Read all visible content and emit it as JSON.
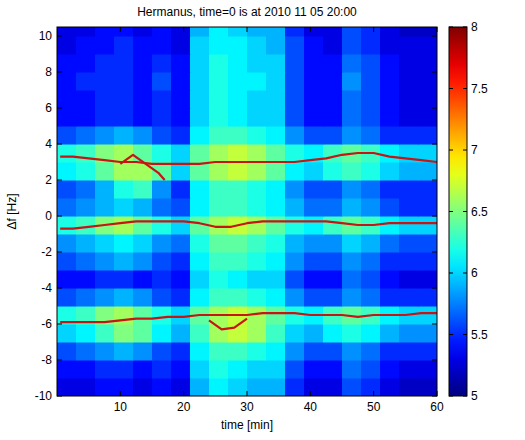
{
  "chart_data": {
    "type": "heatmap",
    "title": "Hermanus, time=0 is at 2010 11 05 20:00",
    "x_label": "time [min]",
    "y_label": "Δf [Hz]",
    "xlim": [
      0,
      60
    ],
    "ylim": [
      -10,
      10.5
    ],
    "xticks": [
      10,
      20,
      30,
      40,
      50,
      60
    ],
    "yticks": [
      -10,
      -8,
      -6,
      -4,
      -2,
      0,
      2,
      4,
      6,
      8,
      10
    ],
    "x_edges": [
      0,
      3,
      6,
      9,
      12,
      15,
      18,
      21,
      24,
      27,
      30,
      33,
      36,
      39,
      42,
      45,
      48,
      51,
      54,
      57,
      60
    ],
    "y_edges": [
      -10,
      -9,
      -8,
      -7,
      -6,
      -5,
      -4,
      -3,
      -2,
      -1,
      0,
      1,
      2,
      3,
      4,
      5,
      6,
      7,
      8,
      9,
      10,
      10.5
    ],
    "cells": [
      [
        5.3,
        5.3,
        5.4,
        5.4,
        5.3,
        5.4,
        5.3,
        5.9,
        6.1,
        6.0,
        5.9,
        5.9,
        5.5,
        5.3,
        5.3,
        5.6,
        5.5,
        5.3,
        5.2,
        5.2
      ],
      [
        5.4,
        5.4,
        5.5,
        5.5,
        5.4,
        5.5,
        5.4,
        6.0,
        6.2,
        6.1,
        6.0,
        6.0,
        5.6,
        5.4,
        5.4,
        5.7,
        5.6,
        5.4,
        5.3,
        5.3
      ],
      [
        5.6,
        5.7,
        5.8,
        5.9,
        5.8,
        5.6,
        5.5,
        6.1,
        6.3,
        6.3,
        6.2,
        6.1,
        5.8,
        5.6,
        5.6,
        5.8,
        5.7,
        5.5,
        5.5,
        5.5
      ],
      [
        6.0,
        6.1,
        6.3,
        6.5,
        6.4,
        6.1,
        5.9,
        6.3,
        6.6,
        6.7,
        6.6,
        6.3,
        6.0,
        5.9,
        6.1,
        6.2,
        6.1,
        5.9,
        5.8,
        5.8
      ],
      [
        6.2,
        6.3,
        6.5,
        6.6,
        6.4,
        6.2,
        6.0,
        6.4,
        6.6,
        6.7,
        6.6,
        6.4,
        6.2,
        6.1,
        6.3,
        6.4,
        6.3,
        6.1,
        6.0,
        6.0
      ],
      [
        5.6,
        5.7,
        5.8,
        5.9,
        5.8,
        5.6,
        5.5,
        6.1,
        6.3,
        6.3,
        6.2,
        6.1,
        5.8,
        5.6,
        5.6,
        5.8,
        5.7,
        5.5,
        5.5,
        5.5
      ],
      [
        5.4,
        5.4,
        5.5,
        5.5,
        5.4,
        5.5,
        5.4,
        6.0,
        6.2,
        6.1,
        6.0,
        6.0,
        5.6,
        5.4,
        5.4,
        5.7,
        5.6,
        5.4,
        5.3,
        5.3
      ],
      [
        5.6,
        5.7,
        5.8,
        5.9,
        5.8,
        5.6,
        5.5,
        6.1,
        6.3,
        6.3,
        6.2,
        6.1,
        5.8,
        5.6,
        5.6,
        5.8,
        5.7,
        5.5,
        5.5,
        5.5
      ],
      [
        5.8,
        5.9,
        6.0,
        6.1,
        6.0,
        5.8,
        5.7,
        6.2,
        6.4,
        6.4,
        6.3,
        6.2,
        5.9,
        5.8,
        5.8,
        6.0,
        5.9,
        5.7,
        5.6,
        5.6
      ],
      [
        6.2,
        6.3,
        6.5,
        6.6,
        6.4,
        6.2,
        6.0,
        6.4,
        6.6,
        6.7,
        6.6,
        6.4,
        6.2,
        6.1,
        6.3,
        6.4,
        6.3,
        6.1,
        6.0,
        6.0
      ],
      [
        5.7,
        5.8,
        5.9,
        6.0,
        5.9,
        5.7,
        5.6,
        6.1,
        6.3,
        6.3,
        6.2,
        6.1,
        5.9,
        5.7,
        5.7,
        5.9,
        5.8,
        5.6,
        5.5,
        5.5
      ],
      [
        5.6,
        5.7,
        5.9,
        6.2,
        6.3,
        5.8,
        5.5,
        6.1,
        6.3,
        6.3,
        6.2,
        6.1,
        5.8,
        5.6,
        5.6,
        5.8,
        5.7,
        5.5,
        5.5,
        5.5
      ],
      [
        6.1,
        6.2,
        6.4,
        6.6,
        6.6,
        6.4,
        6.0,
        6.4,
        6.6,
        6.7,
        6.6,
        6.4,
        6.1,
        6.0,
        6.2,
        6.3,
        6.2,
        6.0,
        5.9,
        5.9
      ],
      [
        6.2,
        6.3,
        6.5,
        6.6,
        6.4,
        6.2,
        6.0,
        6.4,
        6.6,
        6.7,
        6.6,
        6.4,
        6.2,
        6.1,
        6.3,
        6.4,
        6.3,
        6.1,
        6.0,
        6.0
      ],
      [
        5.6,
        5.7,
        5.8,
        5.9,
        5.8,
        5.6,
        5.5,
        6.1,
        6.3,
        6.3,
        6.2,
        6.1,
        5.8,
        5.6,
        5.6,
        5.8,
        5.7,
        5.5,
        5.5,
        5.5
      ],
      [
        5.4,
        5.4,
        5.5,
        5.5,
        5.4,
        5.5,
        5.4,
        6.0,
        6.2,
        6.1,
        6.0,
        6.0,
        5.6,
        5.4,
        5.4,
        5.7,
        5.6,
        5.4,
        5.3,
        5.3
      ],
      [
        5.4,
        5.4,
        5.5,
        5.5,
        5.4,
        5.5,
        5.4,
        6.0,
        6.2,
        6.1,
        6.0,
        6.0,
        5.6,
        5.4,
        5.4,
        5.7,
        5.6,
        5.4,
        5.3,
        5.3
      ],
      [
        5.4,
        5.5,
        5.5,
        5.5,
        5.4,
        5.6,
        5.4,
        6.0,
        6.2,
        6.1,
        6.1,
        6.0,
        5.6,
        5.4,
        5.4,
        5.8,
        5.6,
        5.4,
        5.3,
        5.3
      ],
      [
        5.4,
        5.4,
        5.5,
        5.5,
        5.4,
        5.5,
        5.4,
        6.0,
        6.2,
        6.1,
        6.0,
        6.0,
        5.6,
        5.4,
        5.4,
        5.7,
        5.6,
        5.4,
        5.3,
        5.3
      ],
      [
        5.3,
        5.4,
        5.4,
        5.5,
        5.4,
        5.4,
        5.3,
        6.0,
        6.1,
        6.1,
        6.0,
        5.9,
        5.6,
        5.4,
        5.3,
        5.6,
        5.5,
        5.3,
        5.3,
        5.3
      ],
      [
        5.3,
        5.3,
        5.4,
        5.4,
        5.3,
        5.4,
        5.3,
        5.9,
        6.1,
        6.0,
        5.9,
        5.9,
        5.5,
        5.3,
        5.3,
        5.6,
        5.5,
        5.3,
        5.2,
        5.2
      ]
    ],
    "color_range": [
      5,
      8
    ],
    "color_ticks": [
      5,
      5.5,
      6,
      6.5,
      7,
      7.5,
      8
    ],
    "series": [
      {
        "color": "#c81414",
        "x": [
          0.5,
          2.5,
          5,
          7.5,
          10,
          12.5,
          15,
          17.5,
          20,
          22.5,
          25,
          27.5,
          30,
          32.5,
          35,
          37.5,
          40,
          42.5,
          45,
          47.5,
          50,
          52.5,
          55,
          57.5,
          60
        ],
        "values": [
          3.3,
          3.3,
          3.2,
          3.1,
          3.0,
          3.0,
          2.9,
          2.9,
          2.9,
          2.9,
          3.0,
          3.0,
          3.0,
          3.0,
          3.0,
          3.0,
          3.1,
          3.2,
          3.4,
          3.5,
          3.5,
          3.3,
          3.2,
          3.1,
          3.0
        ]
      },
      {
        "color": "#c81414",
        "x": [
          10,
          12,
          14,
          16,
          17
        ],
        "values": [
          2.9,
          3.4,
          2.9,
          2.4,
          2.0
        ]
      },
      {
        "color": "#c81414",
        "x": [
          0.5,
          2.5,
          5,
          7.5,
          10,
          12.5,
          15,
          17.5,
          20,
          22.5,
          25,
          27.5,
          30,
          32.5,
          35,
          37.5,
          40,
          42.5,
          45,
          47.5,
          50,
          52.5,
          55,
          57.5,
          60
        ],
        "values": [
          -0.7,
          -0.7,
          -0.6,
          -0.5,
          -0.4,
          -0.3,
          -0.3,
          -0.3,
          -0.3,
          -0.4,
          -0.6,
          -0.6,
          -0.4,
          -0.3,
          -0.3,
          -0.3,
          -0.3,
          -0.3,
          -0.4,
          -0.5,
          -0.5,
          -0.4,
          -0.4,
          -0.4,
          -0.4
        ]
      },
      {
        "color": "#c81414",
        "x": [
          0.5,
          2.5,
          5,
          7.5,
          10,
          12.5,
          15,
          17.5,
          20,
          22.5,
          25,
          27.5,
          30,
          32.5,
          35,
          37.5,
          40,
          42.5,
          45,
          47.5,
          50,
          52.5,
          55,
          57.5,
          60
        ],
        "values": [
          -5.9,
          -5.9,
          -5.9,
          -5.9,
          -5.8,
          -5.7,
          -5.7,
          -5.6,
          -5.6,
          -5.5,
          -5.5,
          -5.5,
          -5.5,
          -5.4,
          -5.4,
          -5.4,
          -5.5,
          -5.5,
          -5.5,
          -5.6,
          -5.5,
          -5.5,
          -5.5,
          -5.4,
          -5.4
        ]
      },
      {
        "color": "#c81414",
        "x": [
          24,
          26,
          28,
          30
        ],
        "values": [
          -5.8,
          -6.3,
          -6.2,
          -5.7
        ]
      }
    ]
  }
}
